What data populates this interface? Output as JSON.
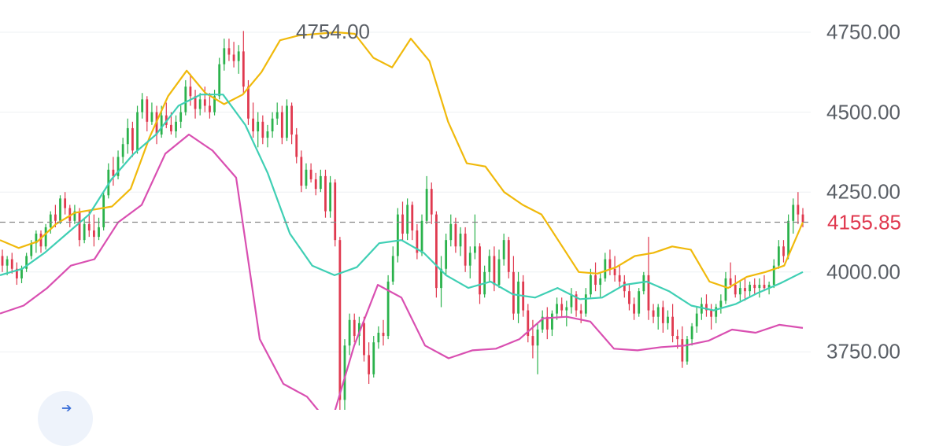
{
  "chart_data": {
    "type": "candlestick",
    "title": "",
    "ylim": [
      3600,
      4790
    ],
    "y_ticks": [
      "4750.00",
      "4500.00",
      "4250.00",
      "4000.00",
      "3750.00"
    ],
    "y_tick_values": [
      4750,
      4500,
      4250,
      4000,
      3750
    ],
    "last_price": 4155.85,
    "last_price_label": "4155.85",
    "high_label": "4754.00",
    "high_value": 4754,
    "colors": {
      "up": "#2bb24c",
      "down": "#e0394f",
      "upper_band": "#f0b90b",
      "middle_band": "#3fcfb4",
      "lower_band": "#d94fb1",
      "last_price_line": "#888888",
      "grid": "#eef0f3"
    },
    "candles": [
      [
        4050,
        4070,
        4000,
        4020
      ],
      [
        4020,
        4050,
        3990,
        4040
      ],
      [
        4040,
        4060,
        3995,
        4010
      ],
      [
        4010,
        4030,
        3960,
        3980
      ],
      [
        3980,
        4020,
        3965,
        4010
      ],
      [
        4010,
        4060,
        4000,
        4050
      ],
      [
        4050,
        4100,
        4040,
        4090
      ],
      [
        4090,
        4130,
        4060,
        4120
      ],
      [
        4120,
        4130,
        4060,
        4080
      ],
      [
        4080,
        4150,
        4070,
        4140
      ],
      [
        4140,
        4190,
        4120,
        4180
      ],
      [
        4180,
        4210,
        4140,
        4160
      ],
      [
        4160,
        4240,
        4150,
        4230
      ],
      [
        4230,
        4250,
        4180,
        4200
      ],
      [
        4200,
        4210,
        4140,
        4160
      ],
      [
        4160,
        4210,
        4150,
        4190
      ],
      [
        4190,
        4200,
        4080,
        4100
      ],
      [
        4100,
        4170,
        4090,
        4150
      ],
      [
        4150,
        4190,
        4110,
        4130
      ],
      [
        4130,
        4180,
        4080,
        4110
      ],
      [
        4110,
        4170,
        4100,
        4140
      ],
      [
        4140,
        4250,
        4130,
        4240
      ],
      [
        4240,
        4340,
        4230,
        4320
      ],
      [
        4320,
        4360,
        4270,
        4300
      ],
      [
        4300,
        4380,
        4290,
        4360
      ],
      [
        4360,
        4420,
        4340,
        4400
      ],
      [
        4400,
        4480,
        4370,
        4450
      ],
      [
        4450,
        4470,
        4360,
        4380
      ],
      [
        4380,
        4520,
        4370,
        4500
      ],
      [
        4500,
        4560,
        4480,
        4540
      ],
      [
        4540,
        4550,
        4440,
        4470
      ],
      [
        4470,
        4530,
        4460,
        4500
      ],
      [
        4500,
        4520,
        4400,
        4430
      ],
      [
        4430,
        4520,
        4420,
        4490
      ],
      [
        4490,
        4530,
        4450,
        4460
      ],
      [
        4460,
        4500,
        4430,
        4440
      ],
      [
        4440,
        4490,
        4420,
        4470
      ],
      [
        4470,
        4520,
        4450,
        4500
      ],
      [
        4500,
        4600,
        4490,
        4580
      ],
      [
        4580,
        4620,
        4520,
        4550
      ],
      [
        4550,
        4570,
        4480,
        4510
      ],
      [
        4510,
        4560,
        4490,
        4540
      ],
      [
        4540,
        4580,
        4500,
        4520
      ],
      [
        4520,
        4560,
        4480,
        4500
      ],
      [
        4500,
        4570,
        4490,
        4550
      ],
      [
        4550,
        4670,
        4540,
        4650
      ],
      [
        4650,
        4730,
        4630,
        4700
      ],
      [
        4700,
        4730,
        4660,
        4680
      ],
      [
        4680,
        4720,
        4640,
        4660
      ],
      [
        4660,
        4710,
        4620,
        4690
      ],
      [
        4690,
        4754,
        4560,
        4580
      ],
      [
        4580,
        4600,
        4460,
        4480
      ],
      [
        4480,
        4530,
        4420,
        4440
      ],
      [
        4440,
        4500,
        4390,
        4470
      ],
      [
        4470,
        4490,
        4400,
        4420
      ],
      [
        4420,
        4460,
        4390,
        4440
      ],
      [
        4440,
        4500,
        4420,
        4480
      ],
      [
        4480,
        4530,
        4460,
        4500
      ],
      [
        4500,
        4520,
        4400,
        4420
      ],
      [
        4420,
        4540,
        4410,
        4520
      ],
      [
        4520,
        4530,
        4400,
        4430
      ],
      [
        4430,
        4450,
        4340,
        4360
      ],
      [
        4360,
        4380,
        4250,
        4270
      ],
      [
        4270,
        4340,
        4260,
        4320
      ],
      [
        4320,
        4340,
        4280,
        4290
      ],
      [
        4290,
        4310,
        4240,
        4260
      ],
      [
        4260,
        4320,
        4250,
        4300
      ],
      [
        4300,
        4320,
        4170,
        4190
      ],
      [
        4190,
        4300,
        4170,
        4280
      ],
      [
        4280,
        4290,
        4080,
        4100
      ],
      [
        4100,
        4110,
        3560,
        3600
      ],
      [
        3600,
        3790,
        3560,
        3770
      ],
      [
        3770,
        3870,
        3740,
        3850
      ],
      [
        3850,
        3870,
        3780,
        3800
      ],
      [
        3800,
        3860,
        3770,
        3840
      ],
      [
        3840,
        3860,
        3720,
        3740
      ],
      [
        3740,
        3780,
        3650,
        3680
      ],
      [
        3680,
        3800,
        3670,
        3780
      ],
      [
        3780,
        3830,
        3760,
        3810
      ],
      [
        3810,
        3850,
        3770,
        3800
      ],
      [
        3800,
        3990,
        3790,
        3970
      ],
      [
        3970,
        4080,
        3960,
        4050
      ],
      [
        4050,
        4200,
        4030,
        4180
      ],
      [
        4180,
        4220,
        4100,
        4120
      ],
      [
        4120,
        4230,
        4100,
        4210
      ],
      [
        4210,
        4220,
        4100,
        4130
      ],
      [
        4130,
        4150,
        4040,
        4060
      ],
      [
        4060,
        4180,
        4050,
        4160
      ],
      [
        4160,
        4300,
        4150,
        4260
      ],
      [
        4260,
        4280,
        4150,
        4180
      ],
      [
        4180,
        4190,
        3920,
        3950
      ],
      [
        3950,
        4050,
        3890,
        4010
      ],
      [
        4010,
        4120,
        3990,
        4100
      ],
      [
        4100,
        4180,
        4080,
        4150
      ],
      [
        4150,
        4170,
        4060,
        4080
      ],
      [
        4080,
        4140,
        4050,
        4120
      ],
      [
        4120,
        4140,
        4000,
        4020
      ],
      [
        4020,
        4080,
        3980,
        4060
      ],
      [
        4060,
        4180,
        4040,
        4080
      ],
      [
        4080,
        4090,
        3900,
        3930
      ],
      [
        3930,
        4020,
        3920,
        4000
      ],
      [
        4000,
        4070,
        3970,
        4050
      ],
      [
        4050,
        4080,
        3940,
        3960
      ],
      [
        3960,
        4070,
        3950,
        4040
      ],
      [
        4040,
        4120,
        4020,
        4100
      ],
      [
        4100,
        4110,
        3980,
        4000
      ],
      [
        4000,
        4050,
        3850,
        3870
      ],
      [
        3870,
        4000,
        3840,
        3970
      ],
      [
        3970,
        3990,
        3860,
        3880
      ],
      [
        3880,
        3900,
        3780,
        3800
      ],
      [
        3800,
        3850,
        3730,
        3770
      ],
      [
        3770,
        3840,
        3680,
        3820
      ],
      [
        3820,
        3880,
        3810,
        3860
      ],
      [
        3860,
        3890,
        3790,
        3820
      ],
      [
        3820,
        3880,
        3800,
        3870
      ],
      [
        3870,
        3920,
        3850,
        3900
      ],
      [
        3900,
        3920,
        3860,
        3880
      ],
      [
        3880,
        3910,
        3830,
        3890
      ],
      [
        3890,
        3950,
        3870,
        3930
      ],
      [
        3930,
        3940,
        3860,
        3880
      ],
      [
        3880,
        3900,
        3840,
        3870
      ],
      [
        3870,
        3950,
        3860,
        3930
      ],
      [
        3930,
        4010,
        3920,
        3990
      ],
      [
        3990,
        4030,
        3940,
        3960
      ],
      [
        3960,
        4000,
        3920,
        3980
      ],
      [
        3980,
        4060,
        3970,
        4040
      ],
      [
        4040,
        4070,
        3990,
        4010
      ],
      [
        4010,
        4050,
        3970,
        3990
      ],
      [
        3990,
        4020,
        3950,
        3970
      ],
      [
        3970,
        3990,
        3920,
        3940
      ],
      [
        3940,
        3960,
        3880,
        3900
      ],
      [
        3900,
        3920,
        3850,
        3870
      ],
      [
        3870,
        3950,
        3860,
        3940
      ],
      [
        3940,
        4000,
        3930,
        3990
      ],
      [
        3990,
        4110,
        3850,
        3880
      ],
      [
        3880,
        3900,
        3840,
        3860
      ],
      [
        3860,
        3900,
        3820,
        3890
      ],
      [
        3890,
        3910,
        3810,
        3840
      ],
      [
        3840,
        3880,
        3820,
        3860
      ],
      [
        3860,
        3900,
        3780,
        3800
      ],
      [
        3800,
        3820,
        3760,
        3790
      ],
      [
        3790,
        3830,
        3700,
        3720
      ],
      [
        3720,
        3800,
        3710,
        3790
      ],
      [
        3790,
        3840,
        3770,
        3830
      ],
      [
        3830,
        3890,
        3810,
        3870
      ],
      [
        3870,
        3920,
        3850,
        3900
      ],
      [
        3900,
        3930,
        3860,
        3880
      ],
      [
        3880,
        3900,
        3820,
        3860
      ],
      [
        3860,
        3900,
        3840,
        3890
      ],
      [
        3890,
        3930,
        3870,
        3910
      ],
      [
        3910,
        4000,
        3900,
        3980
      ],
      [
        3980,
        4030,
        3950,
        3960
      ],
      [
        3960,
        3990,
        3920,
        3930
      ],
      [
        3930,
        3970,
        3910,
        3950
      ],
      [
        3950,
        3980,
        3910,
        3940
      ],
      [
        3940,
        3970,
        3920,
        3960
      ],
      [
        3960,
        3980,
        3930,
        3950
      ],
      [
        3950,
        3980,
        3920,
        3960
      ],
      [
        3960,
        3990,
        3940,
        3950
      ],
      [
        3950,
        3970,
        3930,
        3960
      ],
      [
        3960,
        4040,
        3950,
        4020
      ],
      [
        4020,
        4100,
        4010,
        4080
      ],
      [
        4080,
        4100,
        4030,
        4050
      ],
      [
        4050,
        4180,
        4040,
        4160
      ],
      [
        4160,
        4230,
        4120,
        4210
      ],
      [
        4210,
        4250,
        4150,
        4180
      ],
      [
        4180,
        4200,
        4140,
        4155.85
      ]
    ],
    "upper_band": [
      4100,
      4075,
      4095,
      4150,
      4185,
      4195,
      4205,
      4260,
      4420,
      4550,
      4630,
      4560,
      4525,
      4555,
      4625,
      4725,
      4740,
      4745,
      4750,
      4745,
      4670,
      4640,
      4730,
      4660,
      4470,
      4340,
      4330,
      4250,
      4210,
      4180,
      4090,
      4000,
      3995,
      4015,
      4050,
      4060,
      4080,
      4070,
      3970,
      3950,
      3985,
      4000,
      4020,
      4155.85
    ],
    "middle_band": [
      3990,
      4010,
      4060,
      4120,
      4180,
      4290,
      4370,
      4430,
      4520,
      4555,
      4555,
      4460,
      4310,
      4120,
      4020,
      3990,
      4015,
      4090,
      4100,
      4060,
      3990,
      3950,
      3970,
      3930,
      3920,
      3950,
      3915,
      3920,
      3960,
      3970,
      3940,
      3895,
      3880,
      3900,
      3935,
      3965,
      4000
    ],
    "lower_band": [
      3870,
      3895,
      3950,
      4020,
      4040,
      4155,
      4210,
      4370,
      4430,
      4380,
      4295,
      3790,
      3650,
      3610,
      3520,
      3770,
      3960,
      3920,
      3770,
      3730,
      3755,
      3760,
      3790,
      3855,
      3860,
      3845,
      3760,
      3755,
      3765,
      3770,
      3785,
      3820,
      3810,
      3835,
      3825
    ],
    "last_price_line": 4155.85
  }
}
